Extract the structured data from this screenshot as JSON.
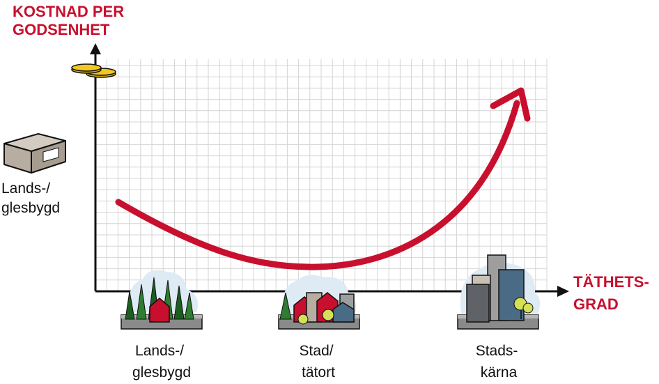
{
  "y_axis_title": [
    "KOSTNAD PER",
    "GODSENHET"
  ],
  "x_axis_title": [
    "TÄTHETS-",
    "GRAD"
  ],
  "left_label": [
    "Lands-/",
    "glesbygd"
  ],
  "categories": [
    {
      "lines": [
        "Lands-/",
        "glesbygd"
      ]
    },
    {
      "lines": [
        "Stad/",
        "tätort"
      ]
    },
    {
      "lines": [
        "Stads-",
        "kärna"
      ]
    }
  ],
  "colors": {
    "accent_red": "#c8102e",
    "grid": "#d4d4d4",
    "axis": "#111111",
    "coin": "#f2c81e",
    "box": "#b7ada0",
    "tree": "#2e7d32",
    "house_red": "#c8102e",
    "building_blue": "#4a6b85",
    "building_grey": "#9e9e9e"
  },
  "icons": [
    "coins-icon",
    "parcel-box-icon",
    "rural-trees-icon",
    "town-houses-icon",
    "city-buildings-icon"
  ]
}
